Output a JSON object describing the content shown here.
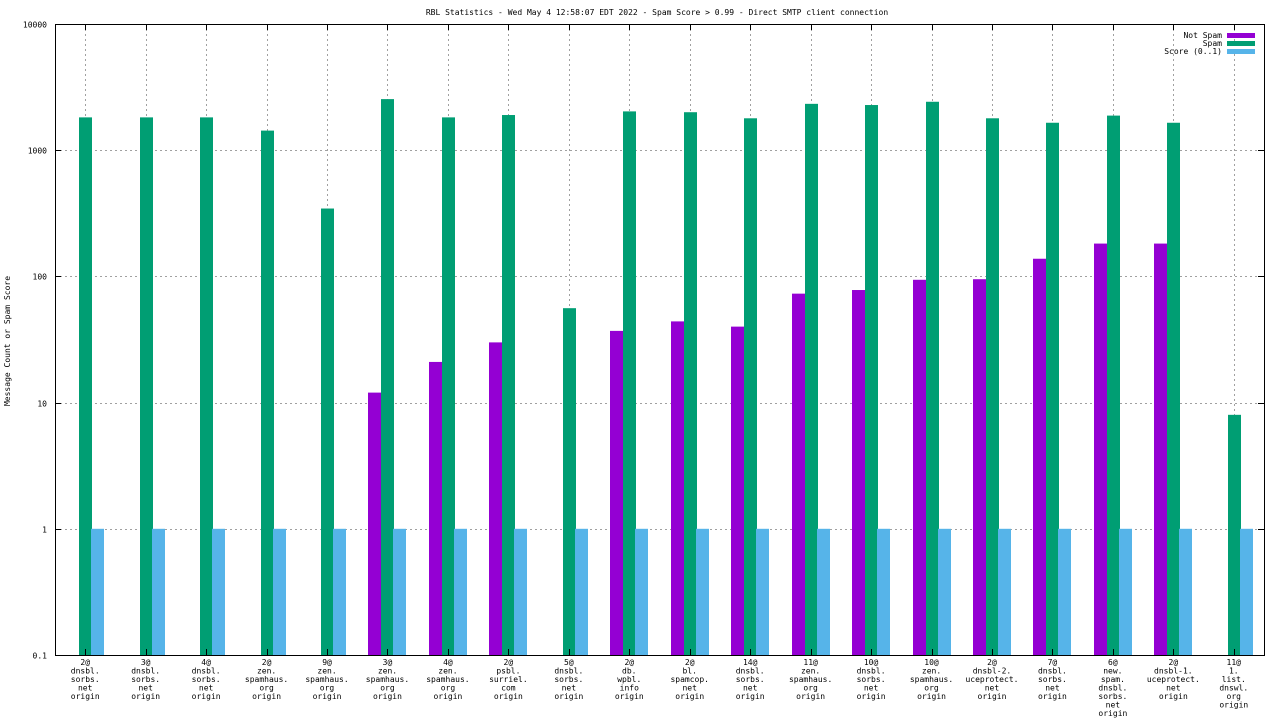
{
  "chart_data": {
    "type": "bar",
    "title": "RBL Statistics - Wed May  4 12:58:07 EDT 2022 - Spam Score > 0.99 - Direct SMTP client connection",
    "xlabel": "",
    "ylabel": "Message Count or Spam Score",
    "yscale": "log",
    "ylim": [
      0.1,
      10000
    ],
    "yticks": [
      "0.1",
      "1",
      "10",
      "100",
      "1000",
      "10000"
    ],
    "grid": true,
    "legend_position": "top-right",
    "categories": [
      [
        "2@",
        "dnsbl.",
        "sorbs.",
        "net",
        "origin"
      ],
      [
        "3@",
        "dnsbl.",
        "sorbs.",
        "net",
        "origin"
      ],
      [
        "4@",
        "dnsbl.",
        "sorbs.",
        "net",
        "origin"
      ],
      [
        "2@",
        "zen.",
        "spamhaus.",
        "org",
        "origin"
      ],
      [
        "9@",
        "zen.",
        "spamhaus.",
        "org",
        "origin"
      ],
      [
        "3@",
        "zen.",
        "spamhaus.",
        "org",
        "origin"
      ],
      [
        "4@",
        "zen.",
        "spamhaus.",
        "org",
        "origin"
      ],
      [
        "2@",
        "psbl.",
        "surriel.",
        "com",
        "origin"
      ],
      [
        "5@",
        "dnsbl.",
        "sorbs.",
        "net",
        "origin"
      ],
      [
        "2@",
        "db.",
        "wpbl.",
        "info",
        "origin"
      ],
      [
        "2@",
        "bl.",
        "spamcop.",
        "net",
        "origin"
      ],
      [
        "14@",
        "dnsbl.",
        "sorbs.",
        "net",
        "origin"
      ],
      [
        "11@",
        "zen.",
        "spamhaus.",
        "org",
        "origin"
      ],
      [
        "10@",
        "dnsbl.",
        "sorbs.",
        "net",
        "origin"
      ],
      [
        "10@",
        "zen.",
        "spamhaus.",
        "org",
        "origin"
      ],
      [
        "2@",
        "dnsbl-2.",
        "uceprotect.",
        "net",
        "origin"
      ],
      [
        "7@",
        "dnsbl.",
        "sorbs.",
        "net",
        "origin"
      ],
      [
        "6@",
        "new.",
        "spam.",
        "dnsbl.",
        "sorbs.",
        "net",
        "origin"
      ],
      [
        "2@",
        "dnsbl-1.",
        "uceprotect.",
        "net",
        "origin"
      ],
      [
        "11@",
        "1.",
        "list.",
        "dnswl.",
        "org",
        "origin"
      ]
    ],
    "series": [
      {
        "name": "Not Spam",
        "color": "#9400d3",
        "values": [
          null,
          null,
          null,
          null,
          null,
          12,
          21,
          30,
          null,
          37,
          44,
          40,
          73,
          78,
          94,
          95,
          138,
          182,
          182,
          null
        ]
      },
      {
        "name": "Spam",
        "color": "#009e73",
        "values": [
          1820,
          1820,
          1820,
          1430,
          345,
          2540,
          1820,
          1900,
          56,
          2030,
          2000,
          1790,
          2330,
          2280,
          2420,
          1790,
          1650,
          1880,
          1650,
          8
        ]
      },
      {
        "name": "Score (0..1)",
        "color": "#56b4e9",
        "values": [
          1,
          1,
          1,
          1,
          1,
          1,
          1,
          1,
          1,
          1,
          1,
          1,
          1,
          1,
          1,
          1,
          1,
          1,
          1,
          1
        ]
      }
    ]
  }
}
